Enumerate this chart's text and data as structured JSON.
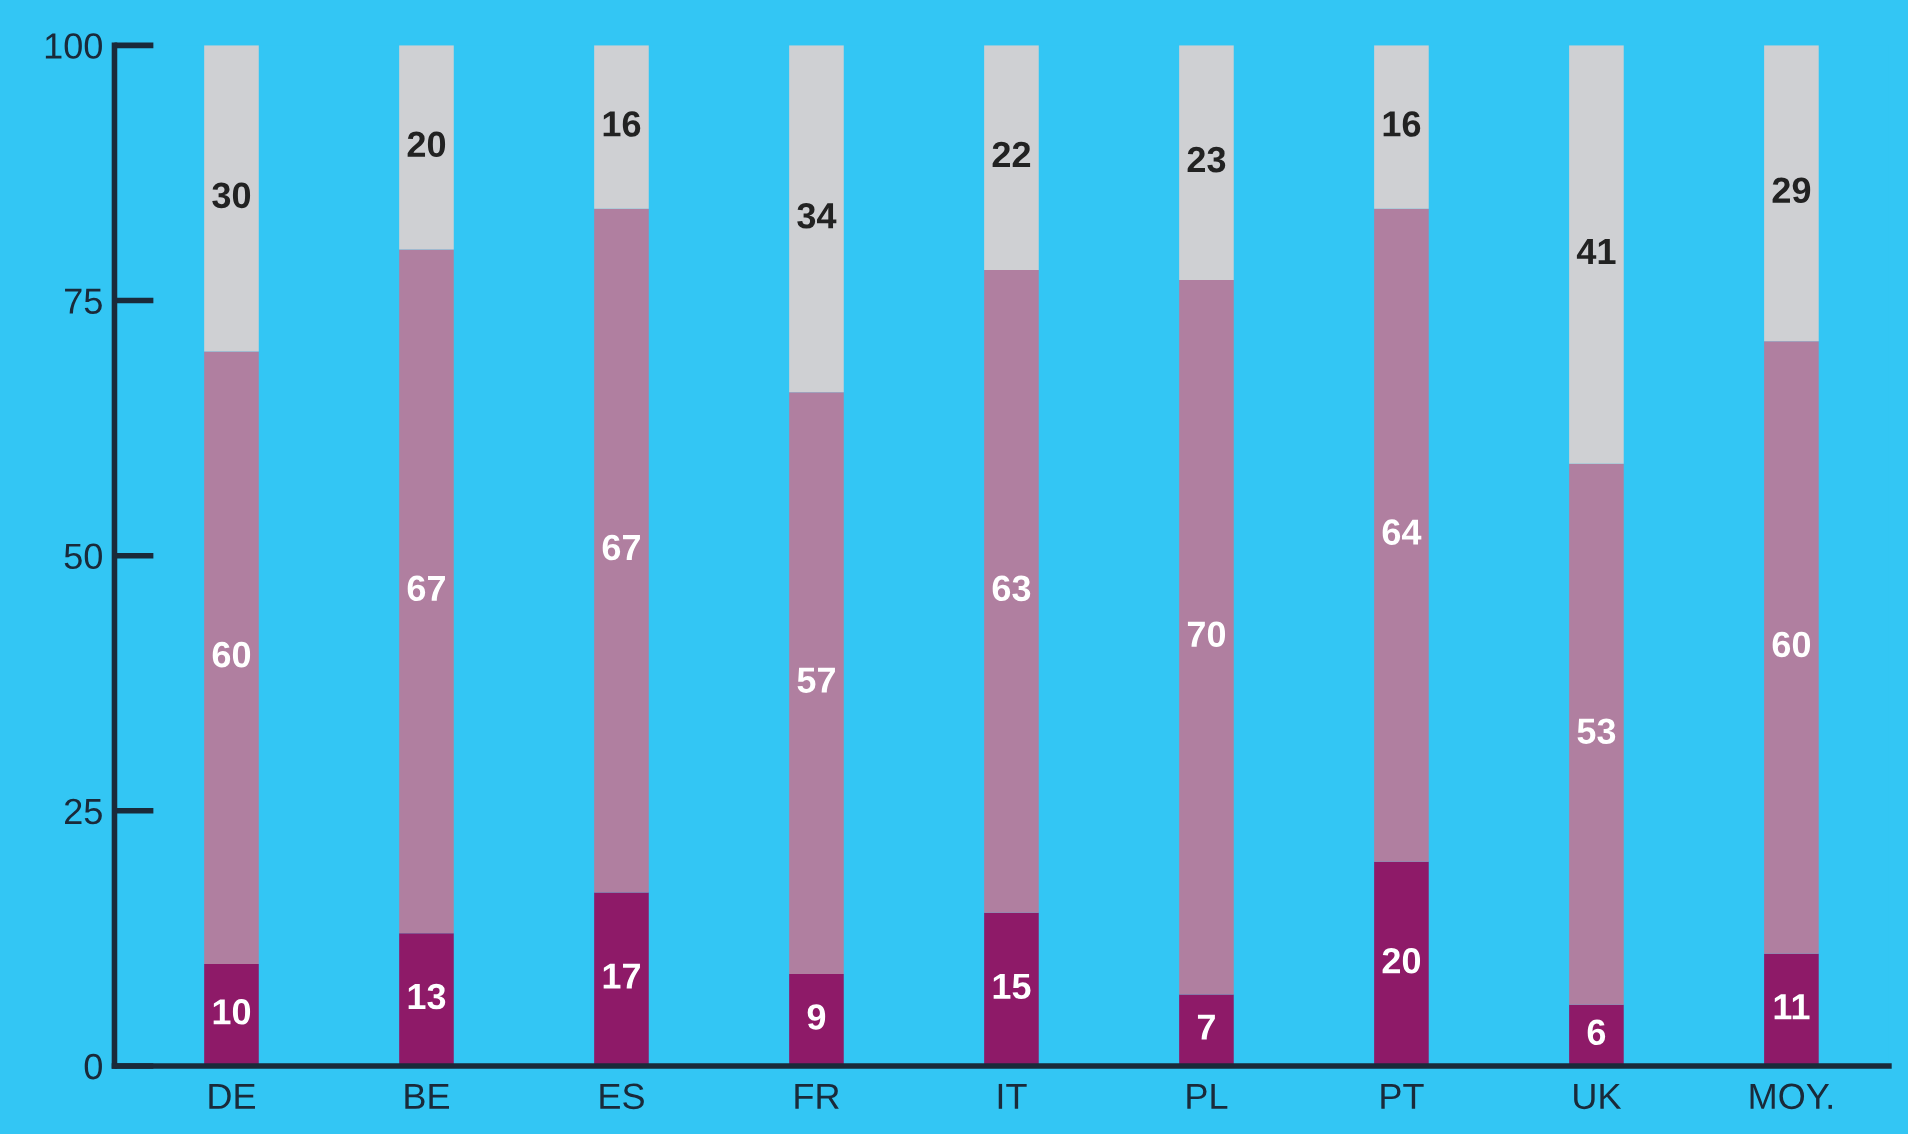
{
  "chart_data": {
    "type": "bar",
    "stacked": true,
    "categories": [
      "DE",
      "BE",
      "ES",
      "FR",
      "IT",
      "PL",
      "PT",
      "UK",
      "MOY."
    ],
    "series": [
      {
        "color": "#8e1a68",
        "values": [
          10,
          13,
          17,
          9,
          15,
          7,
          20,
          6,
          11
        ]
      },
      {
        "color": "#b07fa0",
        "values": [
          60,
          67,
          67,
          57,
          63,
          70,
          64,
          53,
          60
        ]
      },
      {
        "color": "#cfd0d3",
        "values": [
          30,
          20,
          16,
          34,
          22,
          23,
          16,
          41,
          29
        ]
      }
    ],
    "ylim": [
      0,
      100
    ],
    "yticks": [
      0,
      25,
      50,
      75,
      100
    ],
    "grid": false,
    "data_labels": true
  }
}
